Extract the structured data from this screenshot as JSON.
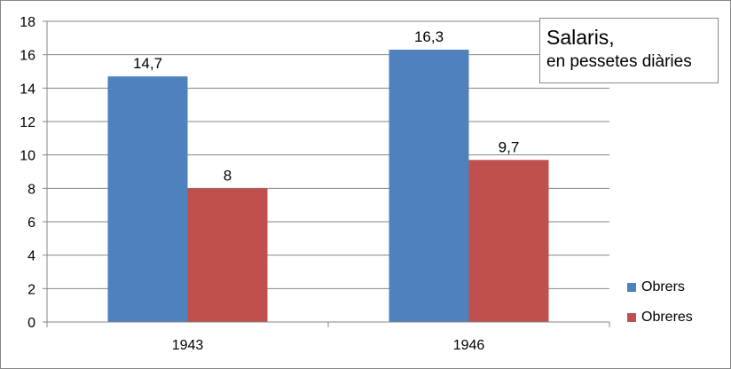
{
  "chart_data": {
    "type": "bar",
    "title": "Salaris,",
    "subtitle": "en pessetes diàries",
    "categories": [
      "1943",
      "1946"
    ],
    "series": [
      {
        "name": "Obrers",
        "values": [
          14.7,
          16.3
        ],
        "labels": [
          "14,7",
          "16,3"
        ],
        "color": "#4f81bd"
      },
      {
        "name": "Obreres",
        "values": [
          8,
          9.7
        ],
        "labels": [
          "8",
          "9,7"
        ],
        "color": "#c0504d"
      }
    ],
    "ylim": [
      0,
      18
    ],
    "yticks": [
      "0",
      "2",
      "4",
      "6",
      "8",
      "10",
      "12",
      "14",
      "16",
      "18"
    ],
    "grid": true,
    "legend_position": "right"
  }
}
